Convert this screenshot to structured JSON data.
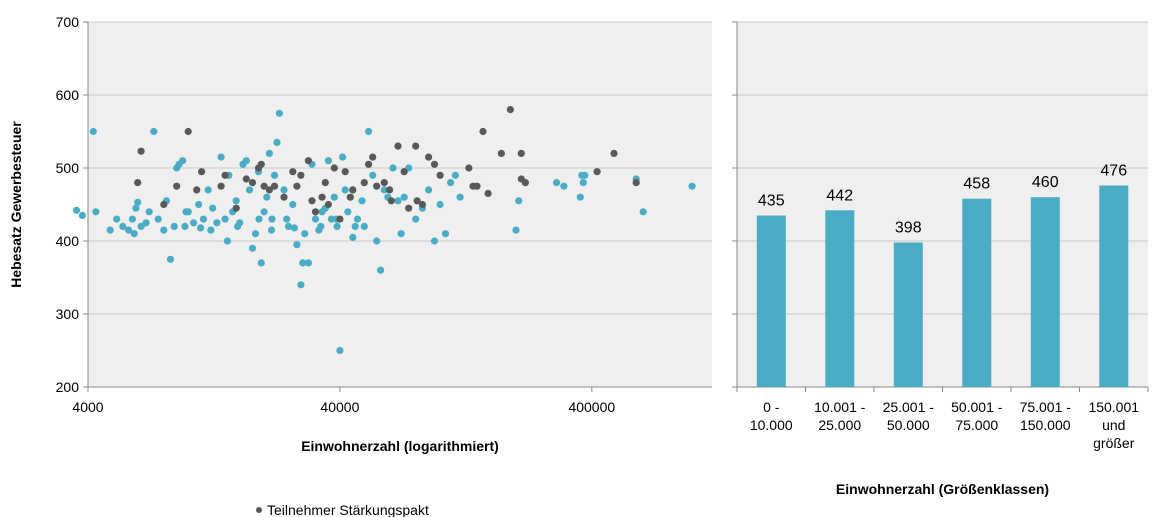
{
  "chart_data": [
    {
      "type": "scatter",
      "title": "",
      "xlabel": "Einwohnerzahl (logarithmiert)",
      "ylabel": "Hebesatz Gewerbesteuer",
      "x_scale": "log",
      "xlim": [
        4000,
        1200000
      ],
      "ylim": [
        200,
        700
      ],
      "x_ticks": [
        4000,
        40000,
        400000
      ],
      "x_tick_labels": [
        "4000",
        "40000",
        "400000"
      ],
      "y_ticks": [
        200,
        300,
        400,
        500,
        600,
        700
      ],
      "y_tick_labels": [
        "200",
        "300",
        "400",
        "500",
        "600",
        "700"
      ],
      "grid": "horizontal",
      "legend": "bottom-left",
      "series": [
        {
          "name": "",
          "color": "#4bacc6",
          "points": [
            [
              3800,
              435
            ],
            [
              4200,
              550
            ],
            [
              4300,
              440
            ],
            [
              4900,
              415
            ],
            [
              5500,
              420
            ],
            [
              5800,
              415
            ],
            [
              6000,
              430
            ],
            [
              6100,
              410
            ],
            [
              6200,
              445
            ],
            [
              6300,
              453
            ],
            [
              6500,
              420
            ],
            [
              6800,
              425
            ],
            [
              7000,
              440
            ],
            [
              7300,
              550
            ],
            [
              7600,
              430
            ],
            [
              8000,
              415
            ],
            [
              8200,
              455
            ],
            [
              8500,
              375
            ],
            [
              8800,
              420
            ],
            [
              9000,
              500
            ],
            [
              9200,
              505
            ],
            [
              9500,
              510
            ],
            [
              9700,
              420
            ],
            [
              10000,
              440
            ],
            [
              10500,
              425
            ],
            [
              11000,
              450
            ],
            [
              11500,
              430
            ],
            [
              12000,
              470
            ],
            [
              12500,
              445
            ],
            [
              13000,
              425
            ],
            [
              13500,
              515
            ],
            [
              14000,
              430
            ],
            [
              14500,
              490
            ],
            [
              15000,
              440
            ],
            [
              15500,
              455
            ],
            [
              16000,
              425
            ],
            [
              16500,
              505
            ],
            [
              17000,
              510
            ],
            [
              17500,
              470
            ],
            [
              18000,
              390
            ],
            [
              18500,
              410
            ],
            [
              19000,
              495
            ],
            [
              19500,
              370
            ],
            [
              20000,
              440
            ],
            [
              20500,
              460
            ],
            [
              21000,
              520
            ],
            [
              21500,
              430
            ],
            [
              22000,
              490
            ],
            [
              22500,
              535
            ],
            [
              23000,
              575
            ],
            [
              24000,
              470
            ],
            [
              25000,
              420
            ],
            [
              26000,
              450
            ],
            [
              27000,
              395
            ],
            [
              28000,
              340
            ],
            [
              28500,
              370
            ],
            [
              29000,
              410
            ],
            [
              30000,
              370
            ],
            [
              31000,
              505
            ],
            [
              32000,
              430
            ],
            [
              33000,
              415
            ],
            [
              34000,
              440
            ],
            [
              35000,
              445
            ],
            [
              36000,
              510
            ],
            [
              37000,
              430
            ],
            [
              38000,
              460
            ],
            [
              39000,
              420
            ],
            [
              40000,
              250
            ],
            [
              41000,
              515
            ],
            [
              42000,
              470
            ],
            [
              43000,
              440
            ],
            [
              45000,
              405
            ],
            [
              47000,
              430
            ],
            [
              49000,
              455
            ],
            [
              50000,
              420
            ],
            [
              52000,
              550
            ],
            [
              54000,
              490
            ],
            [
              56000,
              400
            ],
            [
              58000,
              360
            ],
            [
              60000,
              470
            ],
            [
              62000,
              460
            ],
            [
              65000,
              500
            ],
            [
              68000,
              455
            ],
            [
              70000,
              410
            ],
            [
              72000,
              460
            ],
            [
              75000,
              500
            ],
            [
              80000,
              430
            ],
            [
              85000,
              445
            ],
            [
              90000,
              470
            ],
            [
              95000,
              400
            ],
            [
              100000,
              450
            ],
            [
              105000,
              410
            ],
            [
              110000,
              480
            ],
            [
              115000,
              490
            ],
            [
              120000,
              460
            ],
            [
              200000,
              415
            ],
            [
              205000,
              455
            ],
            [
              290000,
              480
            ],
            [
              310000,
              475
            ],
            [
              360000,
              460
            ],
            [
              365000,
              490
            ],
            [
              370000,
              480
            ],
            [
              375000,
              490
            ],
            [
              600000,
              485
            ],
            [
              640000,
              440
            ],
            [
              1000000,
              475
            ],
            [
              3600,
              442
            ],
            [
              5200,
              430
            ],
            [
              9800,
              440
            ],
            [
              11200,
              418
            ],
            [
              12300,
              415
            ],
            [
              14300,
              400
            ],
            [
              15700,
              420
            ],
            [
              19100,
              430
            ],
            [
              21400,
              415
            ],
            [
              24600,
              430
            ],
            [
              26400,
              418
            ],
            [
              33600,
              420
            ],
            [
              38700,
              430
            ],
            [
              46000,
              420
            ]
          ]
        },
        {
          "name": "Teilnehmer Stärkungspakt",
          "color": "#595959",
          "points": [
            [
              6300,
              480
            ],
            [
              6500,
              523
            ],
            [
              8000,
              450
            ],
            [
              9000,
              475
            ],
            [
              10000,
              550
            ],
            [
              10800,
              470
            ],
            [
              11300,
              495
            ],
            [
              13500,
              475
            ],
            [
              14000,
              490
            ],
            [
              15500,
              445
            ],
            [
              17000,
              485
            ],
            [
              18000,
              480
            ],
            [
              19000,
              500
            ],
            [
              19500,
              505
            ],
            [
              20000,
              475
            ],
            [
              21000,
              470
            ],
            [
              22000,
              475
            ],
            [
              24000,
              460
            ],
            [
              26000,
              495
            ],
            [
              27000,
              475
            ],
            [
              28000,
              490
            ],
            [
              30000,
              510
            ],
            [
              31000,
              455
            ],
            [
              32000,
              440
            ],
            [
              34000,
              460
            ],
            [
              35000,
              480
            ],
            [
              36000,
              450
            ],
            [
              38000,
              500
            ],
            [
              40000,
              430
            ],
            [
              42000,
              495
            ],
            [
              45000,
              470
            ],
            [
              50000,
              480
            ],
            [
              52000,
              505
            ],
            [
              54000,
              515
            ],
            [
              56000,
              475
            ],
            [
              60000,
              480
            ],
            [
              63000,
              470
            ],
            [
              68000,
              530
            ],
            [
              72000,
              495
            ],
            [
              75000,
              445
            ],
            [
              80000,
              530
            ],
            [
              85000,
              450
            ],
            [
              90000,
              515
            ],
            [
              95000,
              505
            ],
            [
              100000,
              490
            ],
            [
              130000,
              500
            ],
            [
              135000,
              475
            ],
            [
              140000,
              475
            ],
            [
              148000,
              550
            ],
            [
              155000,
              465
            ],
            [
              175000,
              520
            ],
            [
              190000,
              580
            ],
            [
              210000,
              520
            ],
            [
              210000,
              485
            ],
            [
              218000,
              480
            ],
            [
              420000,
              495
            ],
            [
              490000,
              520
            ],
            [
              600000,
              480
            ],
            [
              44000,
              460
            ],
            [
              64000,
              455
            ],
            [
              81000,
              455
            ]
          ]
        }
      ]
    },
    {
      "type": "bar",
      "title": "",
      "xlabel": "Einwohnerzahl (Größenklassen)",
      "ylabel": "",
      "ylim": [
        200,
        700
      ],
      "grid": "horizontal",
      "color": "#4bacc6",
      "categories": [
        [
          "0 -",
          "10.000"
        ],
        [
          "10.001 -",
          "25.000"
        ],
        [
          "25.001 -",
          "50.000"
        ],
        [
          "50.001 -",
          "75.000"
        ],
        [
          "75.001 -",
          "150.000"
        ],
        [
          "150.001",
          "und",
          "größer"
        ]
      ],
      "values": [
        435,
        442,
        398,
        458,
        460,
        476
      ],
      "value_labels": [
        "435",
        "442",
        "398",
        "458",
        "460",
        "476"
      ]
    }
  ]
}
